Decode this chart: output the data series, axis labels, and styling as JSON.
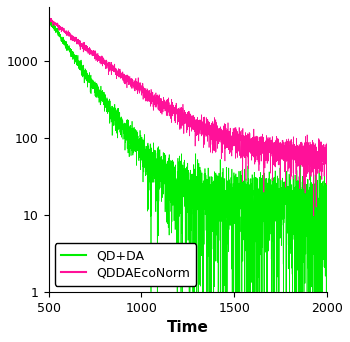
{
  "title": "",
  "xlabel": "Time",
  "ylabel": "",
  "xlim": [
    500,
    2000
  ],
  "ylim": [
    1,
    5000
  ],
  "xticks": [
    500,
    1000,
    1500,
    2000
  ],
  "yticks": [
    1,
    10,
    100,
    1000
  ],
  "color_green": "#00ee00",
  "color_magenta": "#ff1199",
  "legend_labels": [
    "QD+DA",
    "QDDAEcoNorm"
  ],
  "legend_loc": "lower left",
  "xlabel_fontsize": 11,
  "tick_fontsize": 9,
  "legend_fontsize": 9,
  "seed": 7,
  "x_start": 500,
  "x_end": 2000,
  "n_points": 3000,
  "green_A1": 3500,
  "green_tau1": 120,
  "green_A2": 18,
  "green_tau2": 5000,
  "magenta_A1": 3500,
  "magenta_tau1": 220,
  "magenta_A2": 65,
  "magenta_tau2": 8000,
  "noise_factor_green": 2.5,
  "noise_factor_magenta": 2.0,
  "linewidth": 0.5
}
